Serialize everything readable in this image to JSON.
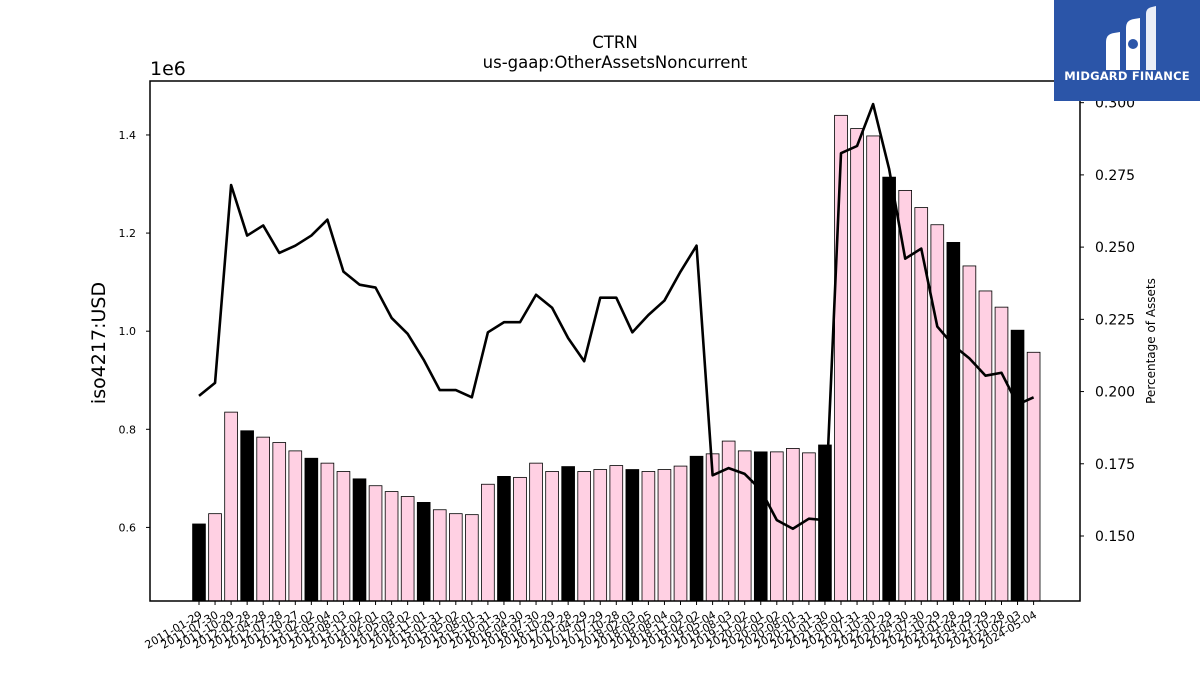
{
  "chart_data": {
    "type": "bar",
    "title": "CTRN",
    "subtitle": "us-gaap:OtherAssetsNoncurrent",
    "ylabel": "iso4217:USD",
    "y_offset_label": "1e6",
    "y2label": "Percentage of Assets",
    "ylim": [
      450000,
      1510000
    ],
    "y2lim": [
      0.1275,
      0.3075
    ],
    "y_ticks": [
      0.6,
      0.8,
      1.0,
      1.2,
      1.4
    ],
    "y2_ticks": [
      0.15,
      0.175,
      0.2,
      0.225,
      0.25,
      0.275,
      0.3
    ],
    "grid": false,
    "categories": [
      "2011-01-29",
      "2011-07-30",
      "2011-10-29",
      "2012-01-28",
      "2012-04-28",
      "2012-07-28",
      "2012-10-27",
      "2013-02-02",
      "2013-05-04",
      "2013-08-03",
      "2013-11-02",
      "2014-02-01",
      "2014-05-03",
      "2014-08-02",
      "2014-11-01",
      "2015-01-31",
      "2015-05-02",
      "2015-08-01",
      "2015-10-31",
      "2016-01-30",
      "2016-04-30",
      "2016-07-30",
      "2016-10-29",
      "2017-01-28",
      "2017-04-29",
      "2017-07-29",
      "2017-10-28",
      "2018-02-03",
      "2018-05-05",
      "2018-08-04",
      "2018-11-03",
      "2019-02-02",
      "2019-05-04",
      "2019-08-03",
      "2019-11-02",
      "2020-02-01",
      "2020-05-02",
      "2020-08-01",
      "2020-10-31",
      "2021-01-30",
      "2021-05-01",
      "2021-07-31",
      "2021-10-30",
      "2022-01-29",
      "2022-04-30",
      "2022-07-30",
      "2022-10-29",
      "2023-01-28",
      "2023-04-29",
      "2023-07-29",
      "2023-10-28",
      "2024-02-03",
      "2024-05-04"
    ],
    "series": [
      {
        "type": "bar",
        "values": [
          607000,
          628000,
          835000,
          797000,
          784000,
          773000,
          756000,
          741000,
          731000,
          714000,
          699000,
          685000,
          673000,
          663000,
          651000,
          636000,
          628000,
          626000,
          688000,
          704000,
          702000,
          731000,
          714000,
          724000,
          714000,
          718000,
          726000,
          718000,
          714000,
          718000,
          725000,
          745000,
          750000,
          776000,
          756000,
          754000,
          754000,
          761000,
          752000,
          768000,
          1440000,
          1413000,
          1398000,
          1314000,
          1287000,
          1252000,
          1217000,
          1181000,
          1133000,
          1082000,
          1049000,
          1002000,
          957000
        ],
        "highlight": [
          true,
          false,
          false,
          true,
          false,
          false,
          false,
          true,
          false,
          false,
          true,
          false,
          false,
          false,
          true,
          false,
          false,
          false,
          false,
          true,
          false,
          false,
          false,
          true,
          false,
          false,
          false,
          true,
          false,
          false,
          false,
          true,
          false,
          false,
          false,
          true,
          false,
          false,
          false,
          true,
          false,
          false,
          false,
          true,
          false,
          false,
          false,
          true,
          false,
          false,
          false,
          true,
          false
        ],
        "color": "#ffd0e3",
        "highlight_color": "#000000"
      },
      {
        "type": "line",
        "axis": "right",
        "values": [
          0.1985,
          0.203,
          0.2715,
          0.254,
          0.2575,
          0.248,
          0.2505,
          0.254,
          0.2595,
          0.2415,
          0.237,
          0.236,
          0.2255,
          0.22,
          0.211,
          0.2005,
          0.2005,
          0.198,
          0.2205,
          0.224,
          0.224,
          0.2335,
          0.229,
          0.2185,
          0.2105,
          0.2325,
          0.2325,
          0.2205,
          0.2265,
          0.2315,
          0.2415,
          0.2505,
          0.171,
          0.1735,
          0.1715,
          0.166,
          0.1555,
          0.1525,
          0.156,
          0.1555,
          0.2825,
          0.285,
          0.2995,
          0.277,
          0.246,
          0.2495,
          0.2225,
          0.216,
          0.2115,
          0.2055,
          0.2065,
          0.1955,
          0.198
        ],
        "color": "#000000"
      }
    ]
  },
  "logo": {
    "text": "MIDGARD FINANCE",
    "color": "#2b55a8"
  }
}
